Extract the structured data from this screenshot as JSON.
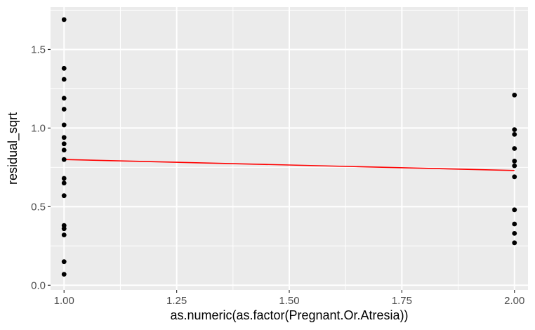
{
  "chart_data": {
    "type": "scatter",
    "xlabel": "as.numeric(as.factor(Pregnant.Or.Atresia))",
    "ylabel": "residual_sqrt",
    "xlim": [
      0.97,
      2.03
    ],
    "ylim": [
      -0.03,
      1.77
    ],
    "x_ticks": [
      1.0,
      1.25,
      1.5,
      1.75,
      2.0
    ],
    "x_tick_labels": [
      "1.00",
      "1.25",
      "1.50",
      "1.75",
      "2.00"
    ],
    "y_ticks": [
      0.0,
      0.5,
      1.0,
      1.5
    ],
    "y_tick_labels": [
      "0.0",
      "0.5",
      "1.0",
      "1.5"
    ],
    "grid": true,
    "legend": "none",
    "point_color": "#000000",
    "line_color": "#ff0000",
    "panel_color": "#ebebeb",
    "grid_color": "#ffffff",
    "points": [
      {
        "x": 1,
        "y": 1.69
      },
      {
        "x": 1,
        "y": 1.38
      },
      {
        "x": 1,
        "y": 1.31
      },
      {
        "x": 1,
        "y": 1.19
      },
      {
        "x": 1,
        "y": 1.12
      },
      {
        "x": 1,
        "y": 1.02
      },
      {
        "x": 1,
        "y": 0.94
      },
      {
        "x": 1,
        "y": 0.9
      },
      {
        "x": 1,
        "y": 0.86
      },
      {
        "x": 1,
        "y": 0.8
      },
      {
        "x": 1,
        "y": 0.68
      },
      {
        "x": 1,
        "y": 0.65
      },
      {
        "x": 1,
        "y": 0.57
      },
      {
        "x": 1,
        "y": 0.38
      },
      {
        "x": 1,
        "y": 0.36
      },
      {
        "x": 1,
        "y": 0.32
      },
      {
        "x": 1,
        "y": 0.15
      },
      {
        "x": 1,
        "y": 0.07
      },
      {
        "x": 2,
        "y": 1.21
      },
      {
        "x": 2,
        "y": 0.99
      },
      {
        "x": 2,
        "y": 0.96
      },
      {
        "x": 2,
        "y": 0.87
      },
      {
        "x": 2,
        "y": 0.79
      },
      {
        "x": 2,
        "y": 0.76
      },
      {
        "x": 2,
        "y": 0.69
      },
      {
        "x": 2,
        "y": 0.48
      },
      {
        "x": 2,
        "y": 0.39
      },
      {
        "x": 2,
        "y": 0.33
      },
      {
        "x": 2,
        "y": 0.27
      }
    ],
    "fit_line": [
      {
        "x": 1.0,
        "y": 0.8
      },
      {
        "x": 2.0,
        "y": 0.73
      }
    ]
  }
}
